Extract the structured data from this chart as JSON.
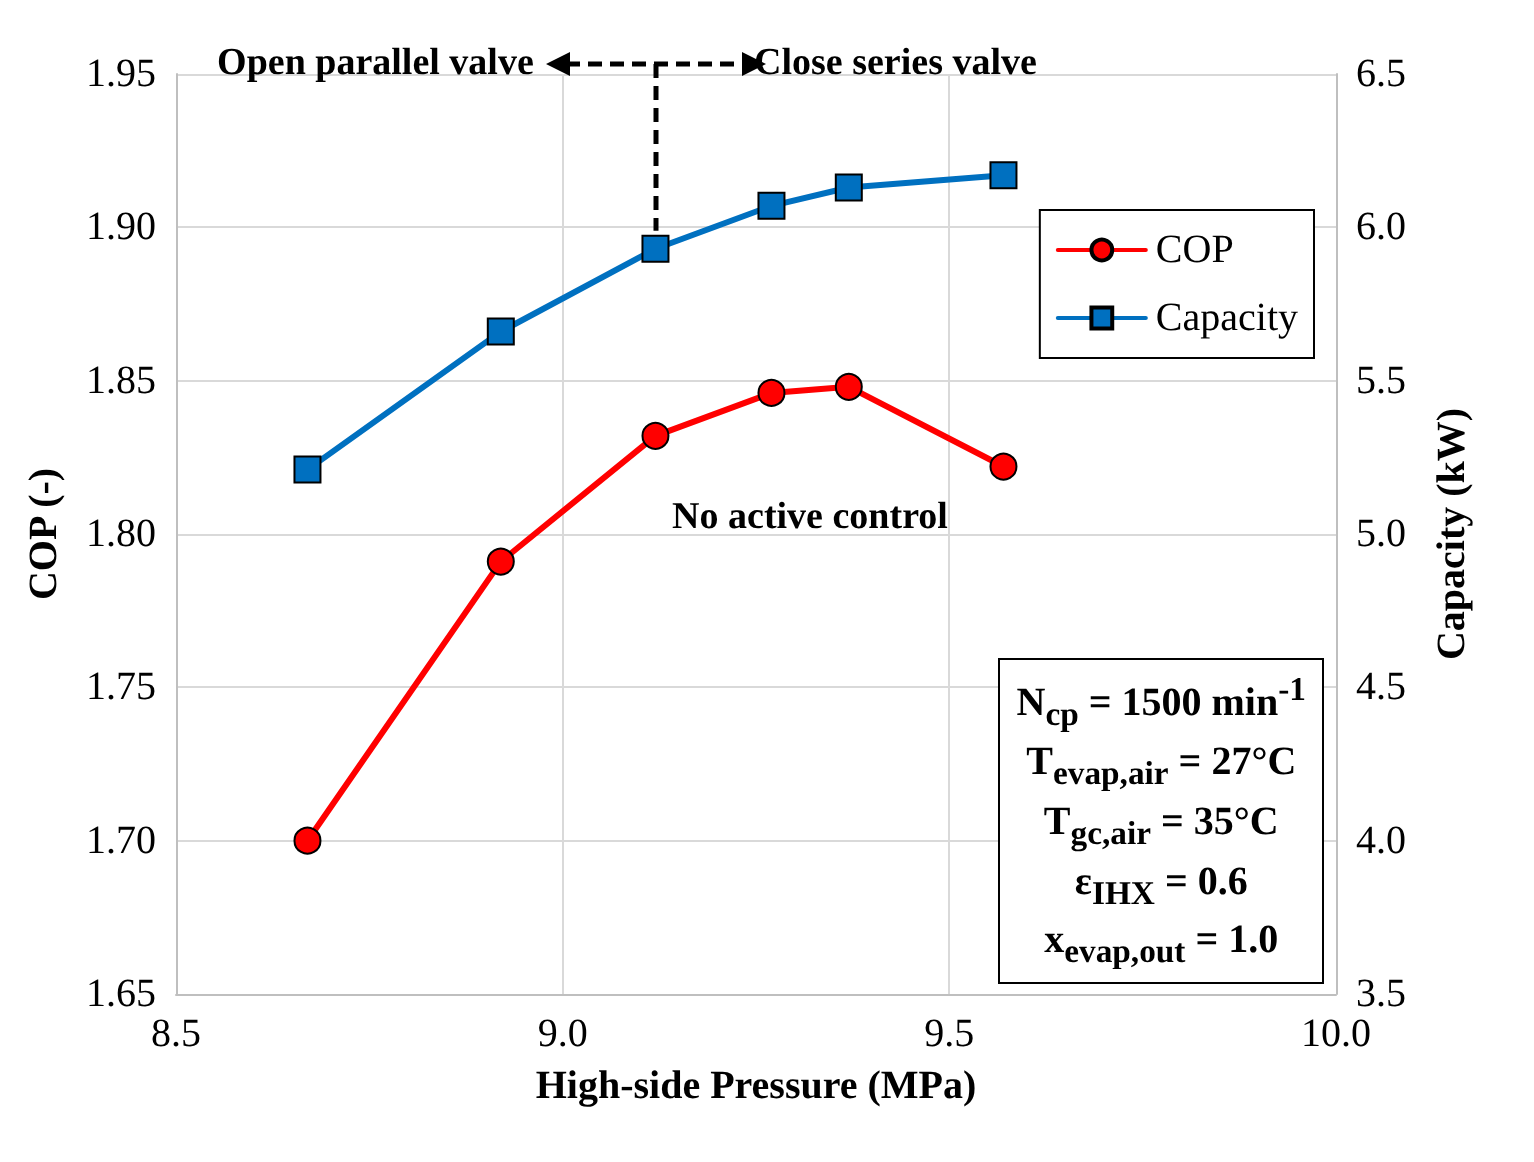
{
  "chart_data": {
    "type": "line",
    "xlabel": "High-side Pressure (MPa)",
    "ylabel": "COP (-)",
    "y2label": "Capacity (kW)",
    "x": [
      8.67,
      8.92,
      9.12,
      9.27,
      9.37,
      9.57
    ],
    "series": [
      {
        "name": "COP",
        "color": "#ff0000",
        "marker": "circle",
        "values": [
          1.7,
          1.791,
          1.832,
          1.846,
          1.848,
          1.822
        ]
      },
      {
        "name": "Capacity",
        "color": "#0070c0",
        "marker": "square",
        "axis": "y2",
        "values": [
          5.21,
          5.66,
          5.93,
          6.07,
          6.13,
          6.17
        ]
      }
    ],
    "xlim": [
      8.5,
      10.0
    ],
    "xticks": [
      {
        "value": 8.5,
        "label": "8.5"
      },
      {
        "value": 9.0,
        "label": "9.0"
      },
      {
        "value": 9.5,
        "label": "9.5"
      },
      {
        "value": 10.0,
        "label": "10.0"
      }
    ],
    "ylim": [
      1.65,
      1.95
    ],
    "yticks": [
      {
        "value": 1.65,
        "label": "1.65"
      },
      {
        "value": 1.7,
        "label": "1.70"
      },
      {
        "value": 1.75,
        "label": "1.75"
      },
      {
        "value": 1.8,
        "label": "1.80"
      },
      {
        "value": 1.85,
        "label": "1.85"
      },
      {
        "value": 1.9,
        "label": "1.90"
      },
      {
        "value": 1.95,
        "label": "1.95"
      }
    ],
    "y2lim": [
      3.5,
      6.5
    ],
    "y2ticks": [
      {
        "value": 3.5,
        "label": "3.5"
      },
      {
        "value": 4.0,
        "label": "4.0"
      },
      {
        "value": 4.5,
        "label": "4.5"
      },
      {
        "value": 5.0,
        "label": "5.0"
      },
      {
        "value": 5.5,
        "label": "5.5"
      },
      {
        "value": 6.0,
        "label": "6.0"
      },
      {
        "value": 6.5,
        "label": "6.5"
      }
    ],
    "grid": true,
    "legend": "top right",
    "line_style": "solid",
    "annotations": [
      "Open parallel valve",
      "Close series valve",
      "No active control",
      "N$_{cp}$ = 1500 min$^{-1}$",
      "T$_{evap,air}$ = 27°C",
      "T$_{gc,air}$ = 35°C",
      "ε$_{IHX}$ = 0.6",
      "x$_{evap,out}$ = 1.0"
    ]
  }
}
